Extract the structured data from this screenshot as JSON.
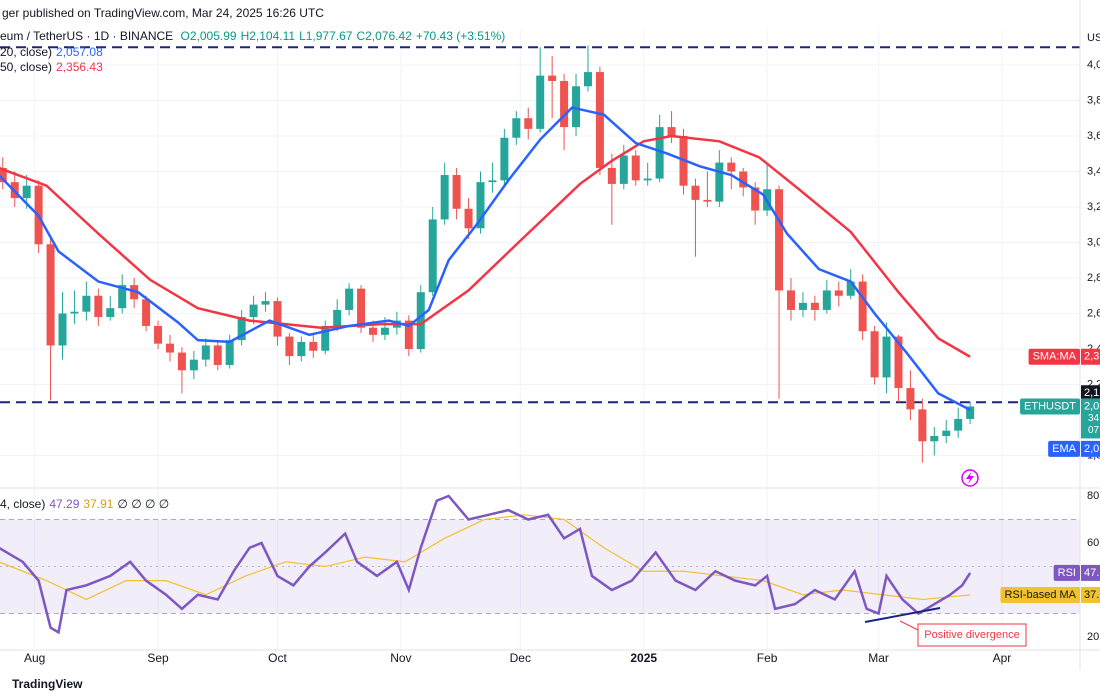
{
  "header": {
    "published": "ger published on TradingView.com, Mar 24, 2025 16:26 UTC",
    "symbol": "eum / TetherUS · 1D · BINANCE",
    "ohlc": [
      "O2,005.99",
      "H2,104.11",
      "L1,977.67",
      "C2,076.42",
      "+70.43 (+3.51%)"
    ],
    "indicators": [
      {
        "name": "20, close)",
        "value": "2,057.08"
      },
      {
        "name": "50, close)",
        "value": "2,356.43"
      }
    ],
    "rsi_legend": {
      "name": "4, close)",
      "values": [
        "47.29",
        "37.91"
      ],
      "extra": "∅ ∅ ∅ ∅"
    }
  },
  "watermark": "TradingView",
  "chart_data": [
    {
      "type": "candlestick",
      "x": [
        9,
        12,
        15,
        18,
        21,
        24,
        27,
        30,
        33,
        36,
        39,
        42,
        45,
        48,
        51,
        54,
        57,
        60,
        63,
        66,
        69,
        72,
        75,
        78,
        81,
        84,
        87,
        90,
        93,
        96,
        99,
        102,
        105,
        108,
        111,
        114,
        117,
        120,
        123,
        126,
        129,
        132,
        135,
        138,
        141,
        144,
        147,
        150,
        153,
        156,
        159,
        162,
        165,
        168,
        171,
        174,
        177,
        180,
        183,
        186,
        189,
        192,
        195,
        198,
        201,
        204,
        207,
        210,
        213,
        216,
        219,
        222,
        225,
        228,
        231,
        234,
        237,
        240,
        243,
        246,
        249,
        252
      ],
      "open": [
        3420,
        3340,
        3250,
        3320,
        2990,
        2420,
        2600,
        2610,
        2700,
        2580,
        2630,
        2760,
        2680,
        2530,
        2430,
        2380,
        2280,
        2340,
        2420,
        2310,
        2450,
        2580,
        2650,
        2670,
        2470,
        2360,
        2440,
        2390,
        2530,
        2620,
        2740,
        2520,
        2480,
        2520,
        2560,
        2400,
        2720,
        3130,
        3380,
        3190,
        3080,
        3340,
        3350,
        3590,
        3700,
        3640,
        3940,
        3910,
        3650,
        3880,
        3960,
        3420,
        3330,
        3490,
        3350,
        3360,
        3650,
        3600,
        3320,
        3240,
        3230,
        3450,
        3400,
        3310,
        3180,
        3300,
        2730,
        2620,
        2660,
        2620,
        2730,
        2700,
        2780,
        2500,
        2240,
        2470,
        2180,
        2060,
        1880,
        1910,
        1940,
        2005.99
      ],
      "high": [
        3480,
        3400,
        3380,
        3350,
        3020,
        2720,
        2730,
        2780,
        2740,
        2700,
        2820,
        2800,
        2700,
        2560,
        2480,
        2410,
        2390,
        2460,
        2440,
        2480,
        2620,
        2700,
        2720,
        2690,
        2490,
        2470,
        2480,
        2560,
        2680,
        2770,
        2760,
        2560,
        2580,
        2610,
        2590,
        2760,
        3200,
        3450,
        3420,
        3250,
        3400,
        3450,
        3640,
        3740,
        3760,
        4100,
        4050,
        3950,
        3950,
        4110,
        3990,
        3500,
        3550,
        3520,
        3450,
        3720,
        3740,
        3640,
        3360,
        3400,
        3520,
        3480,
        3420,
        3340,
        3440,
        3320,
        2800,
        2720,
        2700,
        2790,
        2780,
        2850,
        2820,
        2530,
        2550,
        2480,
        2280,
        2120,
        1960,
        2000,
        2070,
        2104.11
      ],
      "low": [
        3300,
        3200,
        3190,
        2940,
        2110,
        2340,
        2540,
        2560,
        2530,
        2560,
        2600,
        2630,
        2500,
        2400,
        2330,
        2150,
        2230,
        2300,
        2280,
        2290,
        2420,
        2540,
        2610,
        2420,
        2310,
        2330,
        2350,
        2370,
        2500,
        2590,
        2490,
        2440,
        2450,
        2480,
        2360,
        2380,
        2700,
        3100,
        3130,
        3020,
        3050,
        3280,
        3320,
        3550,
        3580,
        3620,
        3700,
        3520,
        3600,
        3850,
        3380,
        3100,
        3300,
        3320,
        3320,
        3340,
        3560,
        3270,
        2920,
        3200,
        3200,
        3300,
        3260,
        3100,
        3150,
        2120,
        2560,
        2580,
        2560,
        2600,
        2640,
        2680,
        2450,
        2200,
        2150,
        2100,
        2000,
        1760,
        1800,
        1870,
        1900,
        1977.67
      ],
      "close": [
        3340,
        3250,
        3320,
        2990,
        2420,
        2600,
        2610,
        2700,
        2580,
        2630,
        2760,
        2680,
        2530,
        2430,
        2380,
        2280,
        2340,
        2420,
        2310,
        2450,
        2580,
        2650,
        2670,
        2470,
        2360,
        2440,
        2390,
        2530,
        2620,
        2740,
        2520,
        2480,
        2520,
        2560,
        2400,
        2720,
        3130,
        3380,
        3190,
        3080,
        3340,
        3350,
        3590,
        3700,
        3640,
        3940,
        3910,
        3650,
        3880,
        3960,
        3420,
        3330,
        3490,
        3350,
        3360,
        3650,
        3600,
        3320,
        3240,
        3230,
        3450,
        3400,
        3310,
        3180,
        3300,
        2730,
        2620,
        2660,
        2620,
        2730,
        2700,
        2780,
        2500,
        2240,
        2470,
        2180,
        2060,
        1880,
        1910,
        1940,
        2005.99,
        2076.42
      ],
      "up_color": "#26a69a",
      "down_color": "#ef5350",
      "xlim": [
        8.3,
        279.6
      ],
      "ylim": [
        1617,
        4197
      ],
      "yticks": [
        {
          "value": 4000,
          "label": "4,0"
        },
        {
          "value": 3800,
          "label": "3,8"
        },
        {
          "value": 3600,
          "label": "3,6"
        },
        {
          "value": 3400,
          "label": "3,4"
        },
        {
          "value": 3200,
          "label": "3,2"
        },
        {
          "value": 3000,
          "label": "3,0"
        },
        {
          "value": 2800,
          "label": "2,8"
        },
        {
          "value": 2600,
          "label": "2,6"
        },
        {
          "value": 2400,
          "label": "2,4"
        },
        {
          "value": 2200,
          "label": "2,2"
        },
        {
          "value": 1800,
          "label": "1,8"
        }
      ],
      "y_unit": "US",
      "grid": true,
      "levels": [
        4100,
        2100
      ],
      "level_label": "2,1",
      "level_color": "#1a237e",
      "last_price": {
        "name": "ETHUSDT",
        "label": "2,0",
        "countdown": [
          "34",
          "07"
        ],
        "color": "#26a69a"
      },
      "series": [
        {
          "name": "SMA:MA",
          "color": "#f23645",
          "tag_label": "2,3",
          "x": [
            8,
            20,
            33,
            46,
            58,
            71,
            89,
            104,
            114,
            126,
            139,
            154,
            162,
            170,
            177,
            189,
            199,
            209,
            222,
            234,
            244,
            252
          ],
          "values": [
            3420,
            3320,
            3050,
            2790,
            2630,
            2560,
            2520,
            2540,
            2540,
            2730,
            3010,
            3330,
            3460,
            3570,
            3600,
            3570,
            3480,
            3300,
            3060,
            2720,
            2460,
            2356.43
          ]
        },
        {
          "name": "EMA",
          "color": "#2962ff",
          "tag_label": "2,0",
          "x": [
            8,
            18,
            23,
            33,
            43,
            53,
            58,
            66,
            76,
            86,
            96,
            106,
            111,
            116,
            121,
            128,
            136,
            144,
            152,
            160,
            168,
            176,
            184,
            192,
            200,
            206,
            214,
            222,
            228,
            236,
            244,
            252
          ],
          "values": [
            3380,
            3150,
            2950,
            2780,
            2720,
            2550,
            2450,
            2440,
            2560,
            2480,
            2530,
            2560,
            2530,
            2620,
            2900,
            3100,
            3350,
            3580,
            3760,
            3720,
            3560,
            3500,
            3430,
            3380,
            3270,
            3050,
            2850,
            2780,
            2600,
            2380,
            2150,
            2057.08
          ]
        }
      ]
    },
    {
      "type": "line",
      "xlim": [
        8.3,
        279.6
      ],
      "ylim": [
        14.5,
        83.4
      ],
      "xticks": [
        {
          "value": 17,
          "label": "Aug"
        },
        {
          "value": 48,
          "label": "Sep"
        },
        {
          "value": 78,
          "label": "Oct"
        },
        {
          "value": 109,
          "label": "Nov"
        },
        {
          "value": 139,
          "label": "Dec"
        },
        {
          "value": 170,
          "label": "2025"
        },
        {
          "value": 201,
          "label": "Feb"
        },
        {
          "value": 229,
          "label": "Mar"
        },
        {
          "value": 260,
          "label": "Apr"
        }
      ],
      "yticks": [
        {
          "value": 80,
          "label": "80.00"
        },
        {
          "value": 60,
          "label": "60.00"
        },
        {
          "value": 20,
          "label": "20.00"
        }
      ],
      "band": [
        30,
        70
      ],
      "midline": 50,
      "band_color": "#7e57c2",
      "annotation": "Positive divergence",
      "series": [
        {
          "name": "RSI",
          "color": "#7e57c2",
          "tag_label": "47.",
          "x": [
            8,
            14,
            18,
            21,
            23,
            25,
            30,
            36,
            41,
            45,
            50,
            54,
            58,
            63,
            67,
            71,
            74,
            78,
            82,
            86,
            90,
            95,
            98,
            103,
            108,
            111,
            114,
            118,
            121,
            126,
            131,
            136,
            141,
            146,
            150,
            154,
            157,
            162,
            167,
            173,
            178,
            183,
            188,
            193,
            198,
            201,
            203,
            208,
            213,
            218,
            223,
            226,
            229,
            231,
            235,
            239,
            243,
            247,
            250,
            252
          ],
          "values": [
            58,
            52,
            44,
            24,
            22,
            40,
            42,
            46,
            52,
            44,
            38,
            32,
            38,
            36,
            48,
            58,
            60,
            46,
            42,
            50,
            56,
            64,
            52,
            46,
            52,
            40,
            58,
            78,
            80,
            70,
            72,
            74,
            70,
            72,
            62,
            66,
            46,
            40,
            44,
            56,
            44,
            40,
            48,
            44,
            42,
            46,
            32,
            34,
            40,
            36,
            48,
            32,
            30,
            46,
            36,
            30,
            34,
            38,
            42,
            47.29
          ]
        },
        {
          "name": "RSI-based MA",
          "color": "#f2c12e",
          "tag_label": "37.",
          "x": [
            8,
            20,
            30,
            40,
            50,
            60,
            70,
            80,
            90,
            100,
            110,
            120,
            130,
            140,
            150,
            160,
            170,
            180,
            190,
            200,
            210,
            220,
            230,
            240,
            252
          ],
          "values": [
            52,
            44,
            36,
            44,
            44,
            38,
            46,
            52,
            50,
            54,
            52,
            62,
            70,
            72,
            70,
            58,
            48,
            48,
            46,
            44,
            38,
            40,
            38,
            36,
            37.91
          ]
        }
      ]
    }
  ]
}
